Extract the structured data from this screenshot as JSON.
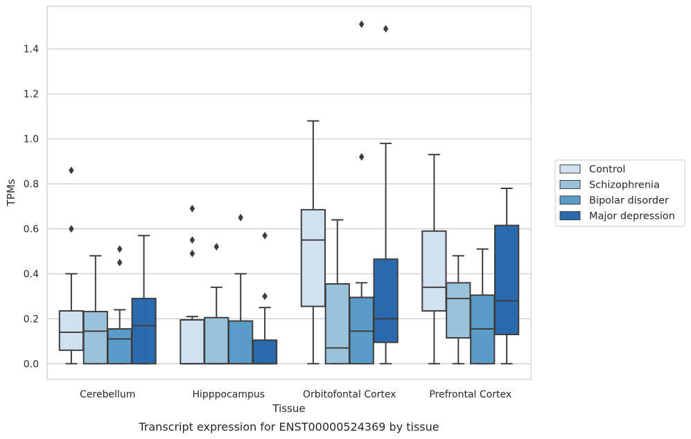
{
  "chart_data": {
    "type": "box",
    "xlabel": "Tissue",
    "ylabel": "TPMs",
    "caption": "Transcript expression for ENST00000524369 by tissue",
    "ylim": [
      -0.07,
      1.59
    ],
    "yticks": [
      "0.0",
      "0.2",
      "0.4",
      "0.6",
      "0.8",
      "1.0",
      "1.2",
      "1.4"
    ],
    "categories": [
      "Cerebellum",
      "Hipppocampus",
      "Orbitofontal Cortex",
      "Prefrontal Cortex"
    ],
    "grid": "horizontal",
    "legend_position": "right",
    "series": [
      {
        "name": "Control",
        "color": "#d1e1f0",
        "boxes": [
          {
            "whislo": 0.0,
            "q1": 0.06,
            "median": 0.14,
            "q3": 0.235,
            "whishi": 0.4,
            "fliers": [
              0.6,
              0.86
            ]
          },
          {
            "whislo": 0.0,
            "q1": 0.0,
            "median": 0.0,
            "q3": 0.195,
            "whishi": 0.21,
            "fliers": [
              0.49,
              0.55,
              0.69
            ]
          },
          {
            "whislo": 0.0,
            "q1": 0.255,
            "median": 0.55,
            "q3": 0.685,
            "whishi": 1.08,
            "fliers": []
          },
          {
            "whislo": 0.0,
            "q1": 0.235,
            "median": 0.34,
            "q3": 0.59,
            "whishi": 0.93,
            "fliers": []
          }
        ]
      },
      {
        "name": "Schizophrenia",
        "color": "#9ac2db",
        "boxes": [
          {
            "whislo": 0.0,
            "q1": 0.0,
            "median": 0.145,
            "q3": 0.232,
            "whishi": 0.48,
            "fliers": []
          },
          {
            "whislo": 0.0,
            "q1": 0.0,
            "median": 0.0,
            "q3": 0.205,
            "whishi": 0.34,
            "fliers": [
              0.52
            ]
          },
          {
            "whislo": 0.0,
            "q1": 0.0,
            "median": 0.07,
            "q3": 0.355,
            "whishi": 0.64,
            "fliers": []
          },
          {
            "whislo": 0.0,
            "q1": 0.115,
            "median": 0.29,
            "q3": 0.36,
            "whishi": 0.48,
            "fliers": []
          }
        ]
      },
      {
        "name": "Bipolar disorder",
        "color": "#5b9bc8",
        "boxes": [
          {
            "whislo": 0.0,
            "q1": 0.0,
            "median": 0.11,
            "q3": 0.155,
            "whishi": 0.24,
            "fliers": [
              0.45,
              0.51
            ]
          },
          {
            "whislo": 0.0,
            "q1": 0.0,
            "median": 0.0,
            "q3": 0.19,
            "whishi": 0.4,
            "fliers": [
              0.65
            ]
          },
          {
            "whislo": 0.0,
            "q1": 0.0,
            "median": 0.145,
            "q3": 0.295,
            "whishi": 0.36,
            "fliers": [
              0.92,
              1.51
            ]
          },
          {
            "whislo": 0.0,
            "q1": 0.0,
            "median": 0.155,
            "q3": 0.305,
            "whishi": 0.51,
            "fliers": []
          }
        ]
      },
      {
        "name": "Major depression",
        "color": "#2a6aad",
        "boxes": [
          {
            "whislo": 0.0,
            "q1": 0.0,
            "median": 0.17,
            "q3": 0.29,
            "whishi": 0.57,
            "fliers": []
          },
          {
            "whislo": 0.0,
            "q1": 0.0,
            "median": 0.0,
            "q3": 0.105,
            "whishi": 0.25,
            "fliers": [
              0.3,
              0.57
            ]
          },
          {
            "whislo": 0.0,
            "q1": 0.095,
            "median": 0.2,
            "q3": 0.465,
            "whishi": 0.98,
            "fliers": [
              1.49
            ]
          },
          {
            "whislo": 0.0,
            "q1": 0.13,
            "median": 0.28,
            "q3": 0.615,
            "whishi": 0.78,
            "fliers": []
          }
        ]
      }
    ]
  }
}
